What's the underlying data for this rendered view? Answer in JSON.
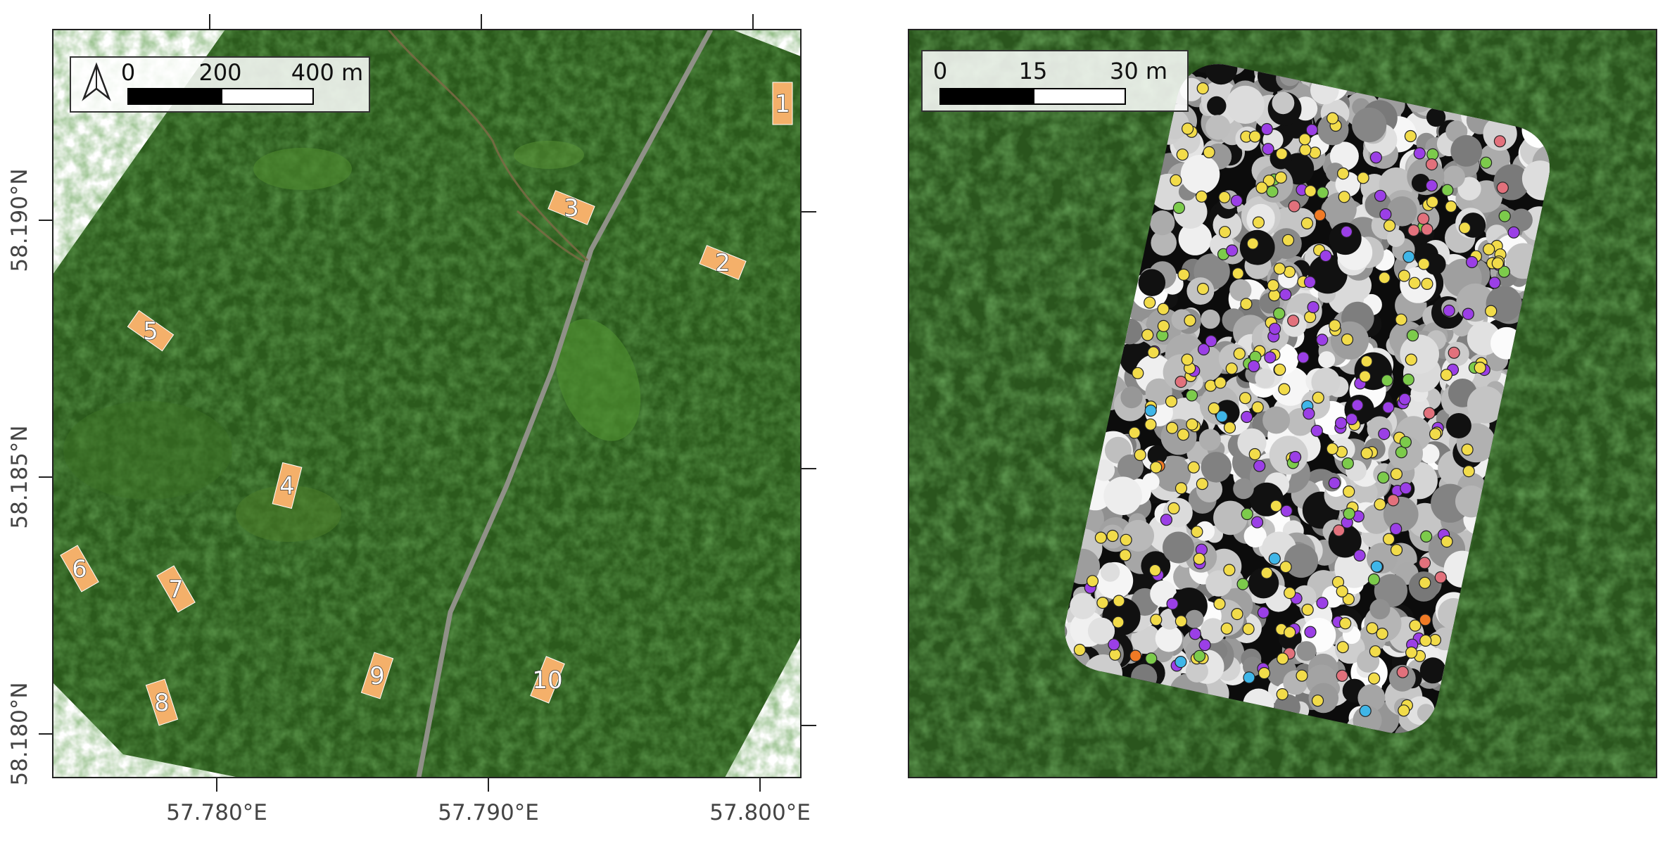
{
  "left_map": {
    "scalebar": {
      "ticks": [
        "0",
        "200",
        "400 m"
      ]
    },
    "north_arrow": "north-arrow-icon",
    "x_axis": {
      "labels": [
        "57.780°E",
        "57.790°E",
        "57.800°E"
      ]
    },
    "y_axis": {
      "labels": [
        "58.190°N",
        "58.185°N",
        "58.180°N"
      ]
    },
    "plots": [
      {
        "label": "1"
      },
      {
        "label": "2"
      },
      {
        "label": "3"
      },
      {
        "label": "4"
      },
      {
        "label": "5"
      },
      {
        "label": "6"
      },
      {
        "label": "7"
      },
      {
        "label": "8"
      },
      {
        "label": "9"
      },
      {
        "label": "10"
      }
    ],
    "colors": {
      "plot_marker": "#f4b06a",
      "forest": "#2f5a1e",
      "road": "#9a9a8e"
    }
  },
  "right_map": {
    "scalebar": {
      "ticks": [
        "0",
        "15",
        "30 m"
      ]
    },
    "colors": {
      "canopy": "#2c5a1f",
      "tree_classes": [
        "#f2dc4a",
        "#9b3fe6",
        "#7ccb4b",
        "#e2717c",
        "#3fb6e8",
        "#f07a25"
      ]
    }
  }
}
